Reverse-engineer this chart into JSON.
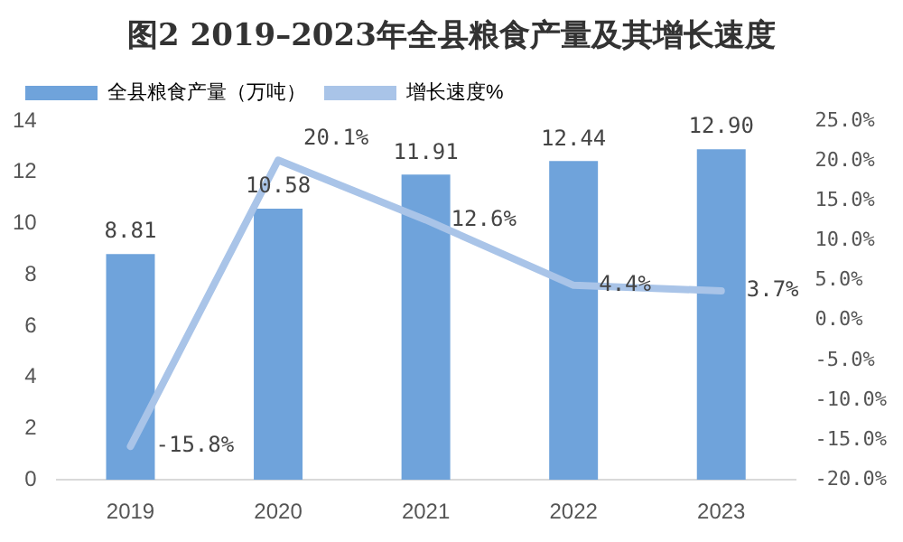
{
  "chart_data": {
    "type": "bar",
    "title": "图2  2019–2023年全县粮食产量及其增长速度",
    "categories": [
      "2019",
      "2020",
      "2021",
      "2022",
      "2023"
    ],
    "series": [
      {
        "name": "全县粮食产量（万吨）",
        "color": "#6fa3db",
        "values": [
          8.81,
          10.58,
          11.91,
          12.44,
          12.9
        ],
        "value_labels": [
          "8.81",
          "10.58",
          "11.91",
          "12.44",
          "12.90"
        ]
      },
      {
        "name": "增长速度%",
        "type": "line",
        "axis": "y2",
        "color": "#a9c4e8",
        "values": [
          -15.8,
          20.1,
          12.6,
          4.4,
          3.7
        ],
        "value_labels": [
          "-15.8%",
          "20.1%",
          "12.6%",
          "4.4%",
          "3.7%"
        ]
      }
    ],
    "ylim": [
      0,
      14
    ],
    "yticks": [
      0,
      2,
      4,
      6,
      8,
      10,
      12,
      14
    ],
    "y2lim": [
      -20,
      25
    ],
    "y2ticks": [
      {
        "value": -20,
        "label": "-20.0%"
      },
      {
        "value": -15,
        "label": "-15.0%"
      },
      {
        "value": -10,
        "label": "-10.0%"
      },
      {
        "value": -5,
        "label": "-5.0%"
      },
      {
        "value": 0,
        "label": "0.0%"
      },
      {
        "value": 5,
        "label": "5.0%"
      },
      {
        "value": 10,
        "label": "10.0%"
      },
      {
        "value": 15,
        "label": "15.0%"
      },
      {
        "value": 20,
        "label": "20.0%"
      },
      {
        "value": 25,
        "label": "25.0%"
      }
    ],
    "grid": false,
    "legend": "top left",
    "marker": "none",
    "line_style": "solid"
  }
}
